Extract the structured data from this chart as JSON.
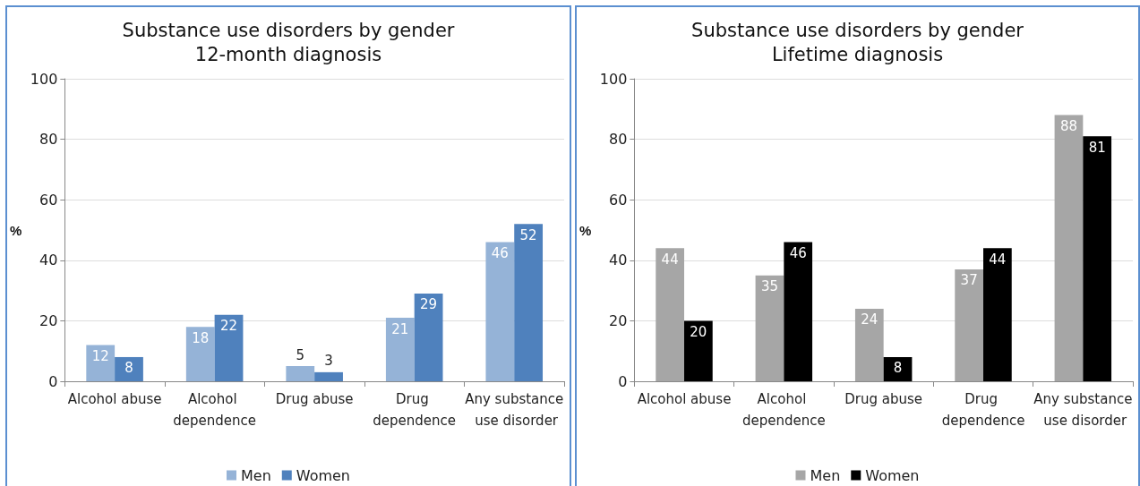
{
  "chart_data": [
    {
      "type": "bar",
      "title": "Substance use disorders by gender",
      "subtitle": "12-month diagnosis",
      "ylabel": "%",
      "categories": [
        "Alcohol abuse",
        "Alcohol dependence",
        "Drug abuse",
        "Drug dependence",
        "Any substance use disorder"
      ],
      "series": [
        {
          "name": "Men",
          "color": "#95b3d7",
          "values": [
            12,
            18,
            5,
            21,
            46
          ]
        },
        {
          "name": "Women",
          "color": "#4f81bd",
          "values": [
            8,
            22,
            3,
            29,
            52
          ]
        }
      ],
      "ylim": [
        0,
        100
      ],
      "yticks": [
        0,
        20,
        40,
        60,
        80,
        100
      ],
      "grid": "y",
      "legend": "bottom",
      "data_labels": true
    },
    {
      "type": "bar",
      "title": "Substance use disorders by gender",
      "subtitle": "Lifetime diagnosis",
      "ylabel": "%",
      "categories": [
        "Alcohol abuse",
        "Alcohol dependence",
        "Drug abuse",
        "Drug dependence",
        "Any substance use disorder"
      ],
      "series": [
        {
          "name": "Men",
          "color": "#a6a6a6",
          "values": [
            44,
            35,
            24,
            37,
            88
          ]
        },
        {
          "name": "Women",
          "color": "#000000",
          "values": [
            20,
            46,
            8,
            44,
            81
          ]
        }
      ],
      "ylim": [
        0,
        100
      ],
      "yticks": [
        0,
        20,
        40,
        60,
        80,
        100
      ],
      "grid": "y",
      "legend": "bottom",
      "data_labels": true
    }
  ]
}
